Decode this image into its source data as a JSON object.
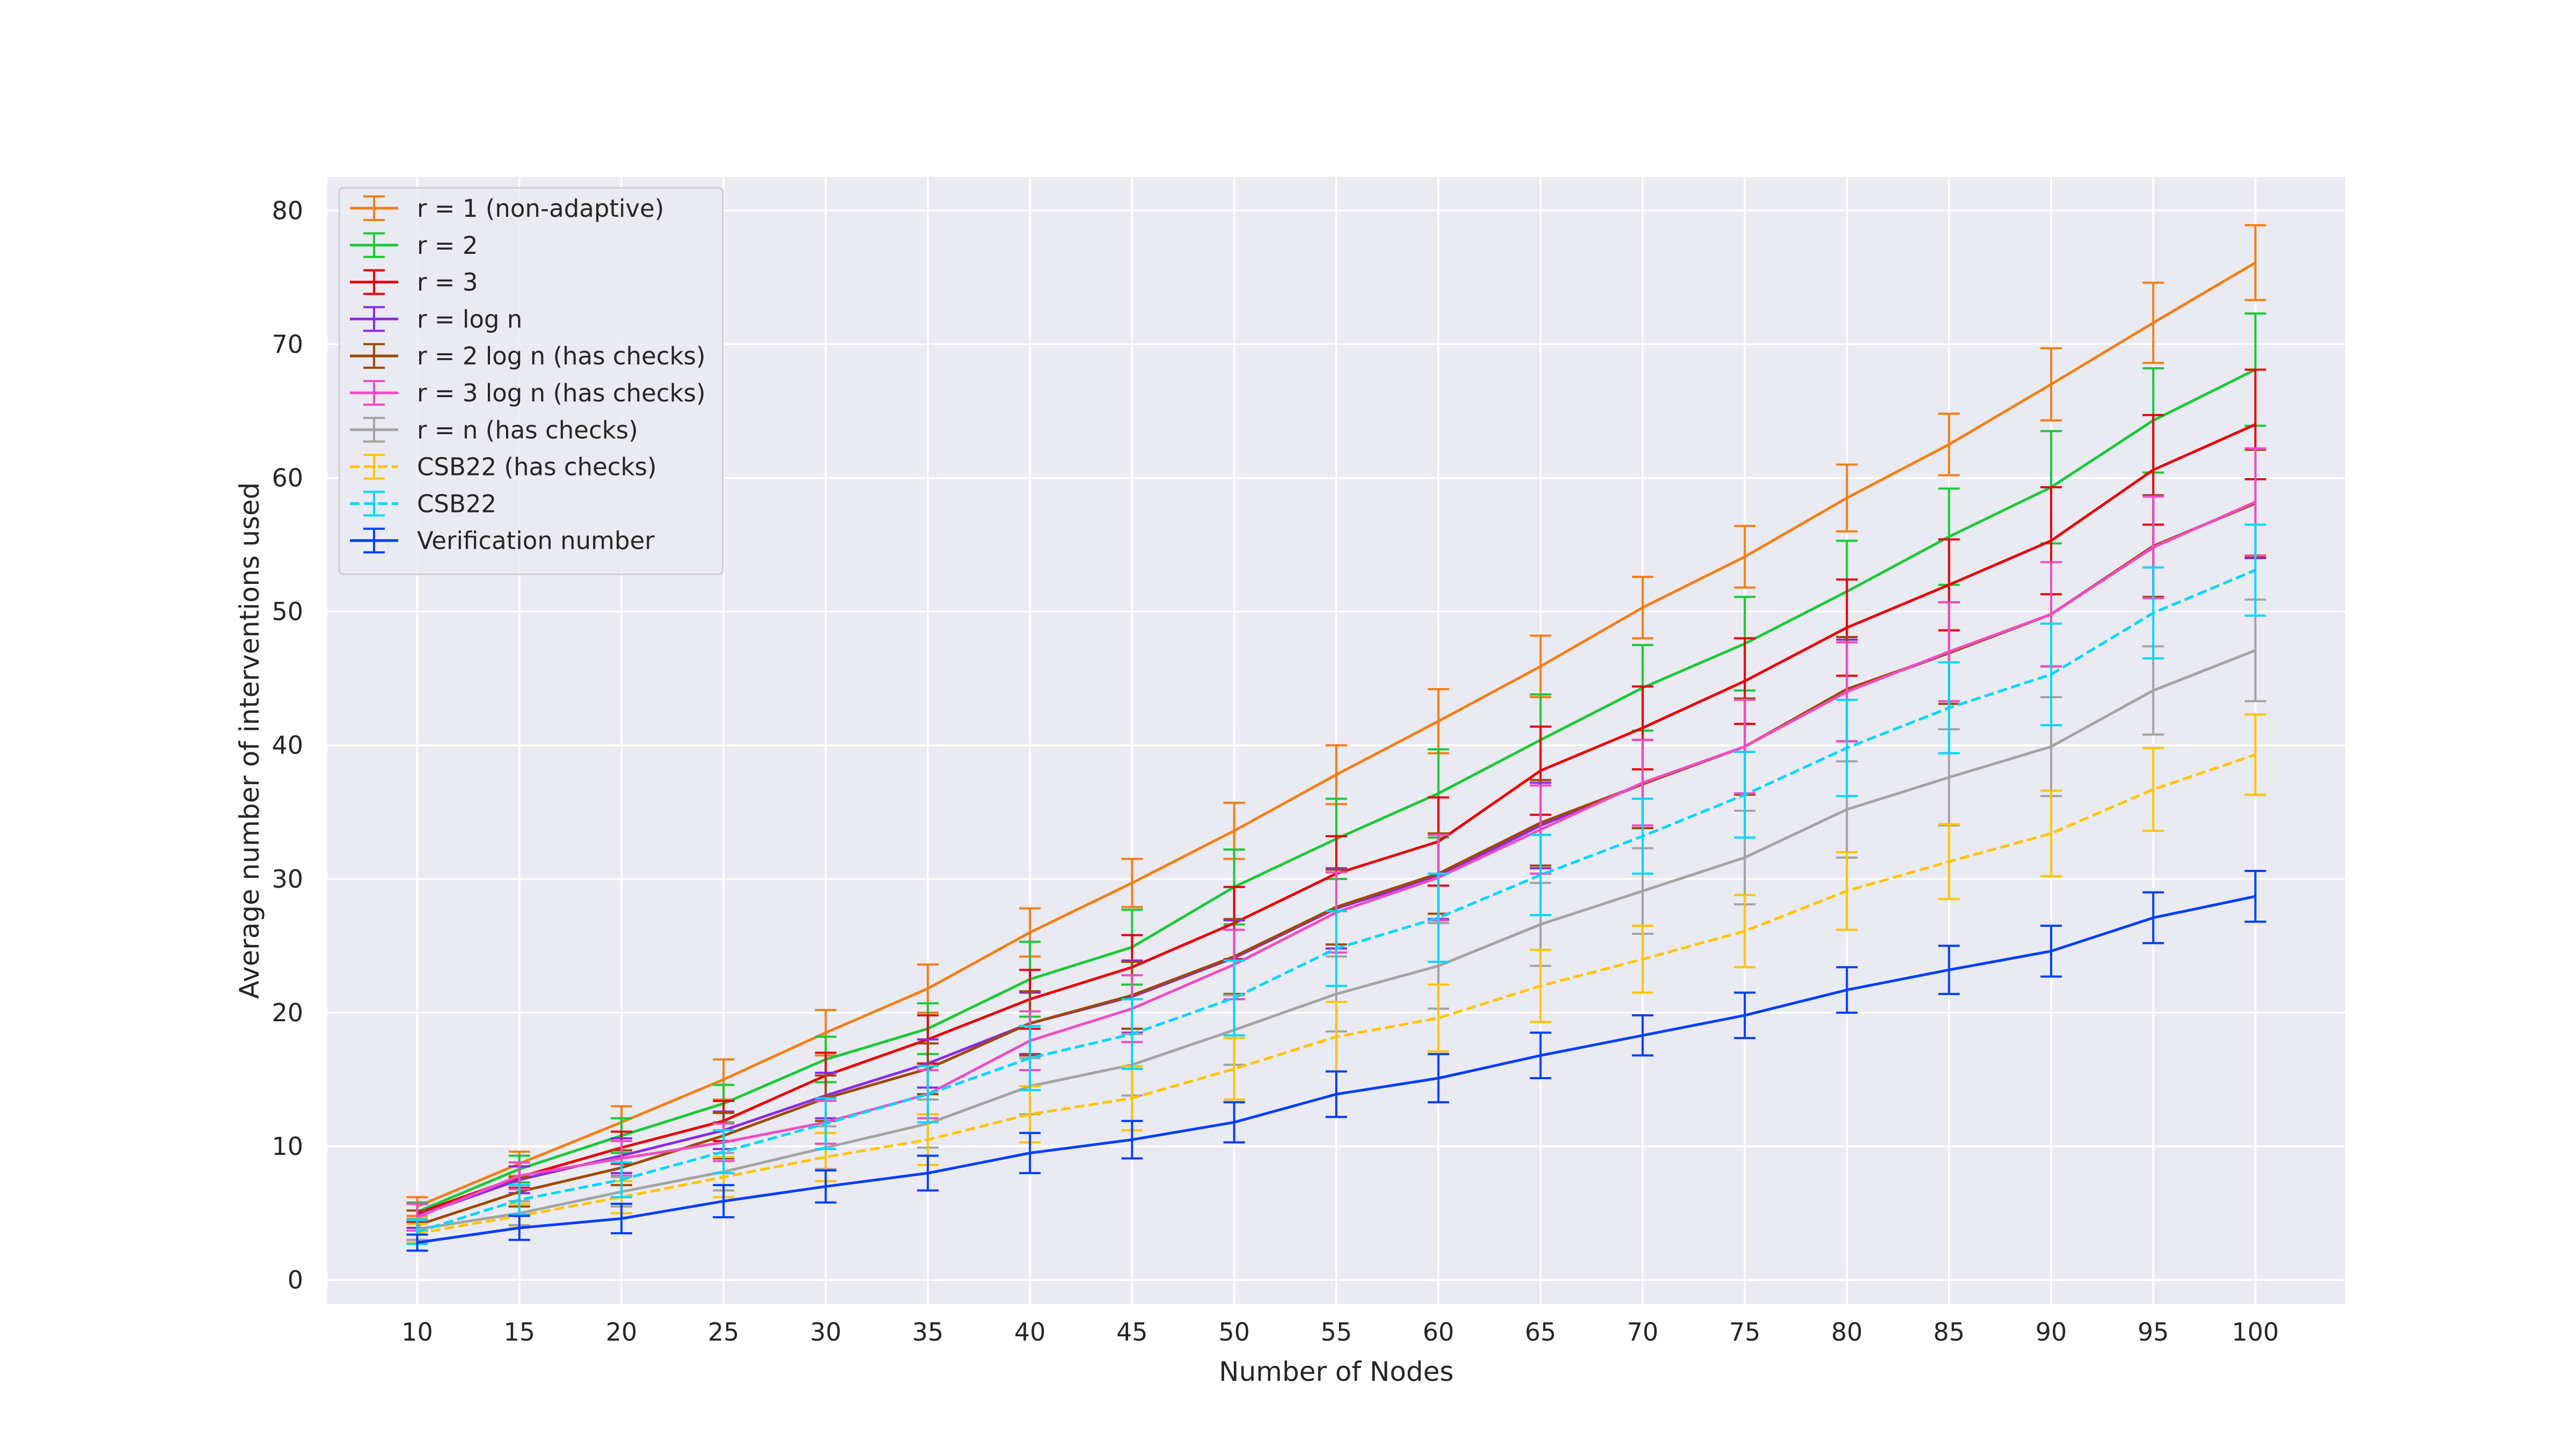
{
  "chart_data": {
    "type": "line",
    "title": "",
    "xlabel": "Number of Nodes",
    "ylabel": "Average number of interventions used",
    "x": [
      10,
      15,
      20,
      25,
      30,
      35,
      40,
      45,
      50,
      55,
      60,
      65,
      70,
      75,
      80,
      85,
      90,
      95,
      100
    ],
    "x_ticks": [
      "10",
      "15",
      "20",
      "25",
      "30",
      "35",
      "40",
      "45",
      "50",
      "55",
      "60",
      "65",
      "70",
      "75",
      "80",
      "85",
      "90",
      "95",
      "100"
    ],
    "y_ticks": [
      "0",
      "10",
      "20",
      "30",
      "40",
      "50",
      "60",
      "70",
      "80"
    ],
    "xlim": [
      5.6,
      104.4
    ],
    "ylim": [
      -1.8,
      82.5
    ],
    "grid": true,
    "legend_position": "top-left",
    "background": "#eaeaf2",
    "series": [
      {
        "name": "r = 1 (non-adaptive)",
        "color": "#f47f16",
        "dashed": false,
        "values": [
          5.5,
          8.7,
          11.8,
          15.0,
          18.5,
          21.8,
          26.0,
          29.7,
          33.6,
          37.8,
          41.8,
          45.9,
          50.3,
          54.1,
          58.5,
          62.5,
          67.0,
          71.6,
          76.1
        ],
        "errors": [
          0.7,
          0.9,
          1.2,
          1.5,
          1.7,
          1.8,
          1.8,
          1.8,
          2.1,
          2.2,
          2.4,
          2.3,
          2.3,
          2.3,
          2.5,
          2.3,
          2.7,
          3.0,
          2.8
        ]
      },
      {
        "name": "r = 2",
        "color": "#1ac938",
        "dashed": false,
        "values": [
          5.1,
          8.3,
          10.8,
          13.2,
          16.5,
          18.8,
          22.5,
          24.9,
          29.4,
          33.0,
          36.4,
          40.4,
          44.3,
          47.6,
          51.5,
          55.6,
          59.3,
          64.3,
          68.1
        ],
        "errors": [
          0.7,
          1.0,
          1.3,
          1.4,
          1.7,
          1.9,
          2.8,
          2.8,
          2.8,
          3.0,
          3.3,
          3.4,
          3.2,
          3.5,
          3.8,
          3.6,
          4.2,
          3.9,
          4.2
        ]
      },
      {
        "name": "r = 3",
        "color": "#e8000b",
        "dashed": false,
        "values": [
          5.0,
          7.7,
          9.9,
          11.9,
          15.3,
          18.0,
          21.0,
          23.4,
          26.7,
          30.4,
          32.8,
          38.1,
          41.3,
          44.8,
          48.8,
          52.0,
          55.3,
          60.6,
          64.0
        ],
        "errors": [
          0.7,
          0.8,
          1.2,
          1.5,
          1.7,
          1.8,
          2.2,
          2.4,
          2.7,
          2.8,
          3.3,
          3.3,
          3.1,
          3.2,
          3.6,
          3.4,
          4.0,
          4.1,
          4.1
        ]
      },
      {
        "name": "r = log n",
        "color": "#8b2be2",
        "dashed": false,
        "values": [
          4.8,
          7.5,
          9.3,
          11.2,
          13.8,
          16.2,
          19.2,
          21.2,
          24.1,
          27.8,
          30.2,
          34.0,
          37.1,
          39.9,
          44.1,
          46.9,
          49.8,
          54.9,
          58.1
        ],
        "errors": [
          0.9,
          1.0,
          1.3,
          1.4,
          1.7,
          1.8,
          2.3,
          2.7,
          2.8,
          3.0,
          3.2,
          3.2,
          3.3,
          3.5,
          3.8,
          3.8,
          3.9,
          3.8,
          4.1
        ]
      },
      {
        "name": "r = 2 log n (has checks)",
        "color": "#9f4800",
        "dashed": false,
        "values": [
          4.1,
          6.6,
          8.4,
          10.8,
          13.6,
          15.8,
          19.2,
          21.3,
          24.2,
          27.9,
          30.4,
          34.2,
          37.1,
          39.9,
          44.2,
          46.9,
          49.8,
          54.9,
          58.1
        ],
        "errors": [
          1.1,
          1.1,
          1.3,
          1.7,
          1.7,
          1.9,
          2.4,
          2.5,
          2.8,
          2.8,
          3.0,
          3.2,
          3.3,
          3.6,
          3.9,
          3.8,
          3.9,
          3.8,
          4.0
        ]
      },
      {
        "name": "r = 3 log n (has checks)",
        "color": "#f14cc1",
        "dashed": false,
        "values": [
          4.7,
          7.8,
          9.1,
          10.3,
          11.8,
          13.9,
          17.9,
          20.3,
          23.6,
          27.5,
          30.1,
          33.7,
          37.2,
          39.9,
          44.0,
          47.0,
          49.8,
          54.8,
          58.2
        ],
        "errors": [
          1.0,
          1.0,
          1.3,
          1.4,
          1.6,
          1.8,
          2.2,
          2.5,
          2.6,
          3.0,
          3.2,
          3.3,
          3.2,
          3.5,
          3.7,
          3.7,
          3.9,
          3.8,
          4.0
        ]
      },
      {
        "name": "r = n (has checks)",
        "color": "#a3a3a3",
        "dashed": false,
        "values": [
          3.8,
          5.0,
          6.6,
          8.1,
          9.9,
          11.7,
          14.5,
          16.1,
          18.7,
          21.4,
          23.5,
          26.6,
          29.1,
          31.6,
          35.2,
          37.6,
          39.9,
          44.1,
          47.1
        ],
        "errors": [
          0.8,
          0.9,
          1.1,
          1.4,
          1.6,
          1.8,
          2.1,
          2.3,
          2.6,
          2.8,
          3.2,
          3.1,
          3.2,
          3.5,
          3.6,
          3.6,
          3.7,
          3.3,
          3.8
        ]
      },
      {
        "name": "CSB22 (has checks)",
        "color": "#ffc400",
        "dashed": true,
        "values": [
          3.5,
          4.8,
          6.2,
          7.7,
          9.2,
          10.5,
          12.4,
          13.6,
          15.8,
          18.2,
          19.6,
          22.0,
          24.0,
          26.1,
          29.1,
          31.3,
          33.4,
          36.7,
          39.3
        ],
        "errors": [
          0.7,
          0.9,
          1.2,
          1.5,
          1.8,
          1.9,
          2.1,
          2.4,
          2.3,
          2.6,
          2.5,
          2.7,
          2.5,
          2.7,
          2.9,
          2.8,
          3.2,
          3.1,
          3.0
        ]
      },
      {
        "name": "CSB22",
        "color": "#00d7ff",
        "dashed": true,
        "values": [
          3.6,
          6.0,
          7.5,
          9.6,
          11.7,
          13.9,
          16.6,
          18.4,
          21.1,
          24.8,
          27.1,
          30.3,
          33.2,
          36.3,
          39.8,
          42.8,
          45.3,
          49.9,
          53.1
        ],
        "errors": [
          0.9,
          1.1,
          1.3,
          1.6,
          1.9,
          2.1,
          2.4,
          2.6,
          2.8,
          2.8,
          3.3,
          3.0,
          2.8,
          3.2,
          3.6,
          3.4,
          3.8,
          3.4,
          3.4
        ]
      },
      {
        "name": "Verification number",
        "color": "#023eff",
        "dashed": false,
        "values": [
          2.8,
          3.9,
          4.6,
          5.9,
          7.0,
          8.0,
          9.5,
          10.5,
          11.8,
          13.9,
          15.1,
          16.8,
          18.3,
          19.8,
          21.7,
          23.2,
          24.6,
          27.1,
          28.7
        ],
        "errors": [
          0.6,
          0.9,
          1.1,
          1.2,
          1.2,
          1.3,
          1.5,
          1.4,
          1.5,
          1.7,
          1.8,
          1.7,
          1.5,
          1.7,
          1.7,
          1.8,
          1.9,
          1.9,
          1.9
        ]
      }
    ]
  }
}
